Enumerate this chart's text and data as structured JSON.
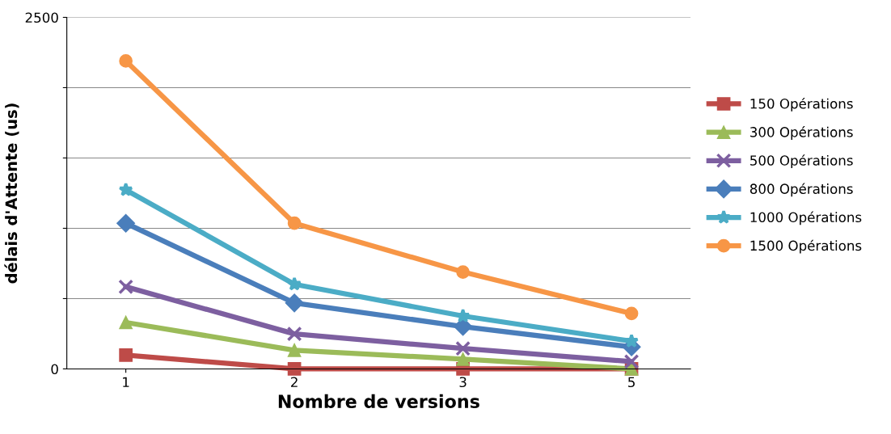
{
  "chart_data": {
    "type": "line",
    "xlabel": "Nombre de versions",
    "ylabel": "délais d'Attente (us)",
    "categories": [
      "1",
      "2",
      "3",
      "5"
    ],
    "series": [
      {
        "name": "150 Opérations",
        "color": "#be4b48",
        "marker": "square",
        "values": [
          98,
          0,
          0,
          0
        ]
      },
      {
        "name": "300 Opérations",
        "color": "#9bbb59",
        "marker": "triangle",
        "values": [
          330,
          133,
          69,
          0
        ]
      },
      {
        "name": "500 Opérations",
        "color": "#7d5fa0",
        "marker": "cross",
        "values": [
          584,
          249,
          145,
          52
        ]
      },
      {
        "name": "800 Opérations",
        "color": "#4a7ebb",
        "marker": "diamond",
        "values": [
          1036,
          469,
          301,
          156
        ]
      },
      {
        "name": "1000 Opérations",
        "color": "#4bacc6",
        "marker": "star",
        "values": [
          1273,
          602,
          376,
          197
        ]
      },
      {
        "name": "1500 Opérations",
        "color": "#f79646",
        "marker": "circle",
        "values": [
          2190,
          1036,
          689,
          394
        ]
      }
    ],
    "ylim": [
      0,
      2500
    ],
    "yticks": [
      0,
      {
        "value": 500,
        "label": null
      },
      {
        "value": 1000,
        "label": null
      },
      {
        "value": 1500,
        "label": null
      },
      {
        "value": 2000,
        "label": null
      },
      2500
    ],
    "grid": "y",
    "legend": "right",
    "line_style": "solid"
  }
}
